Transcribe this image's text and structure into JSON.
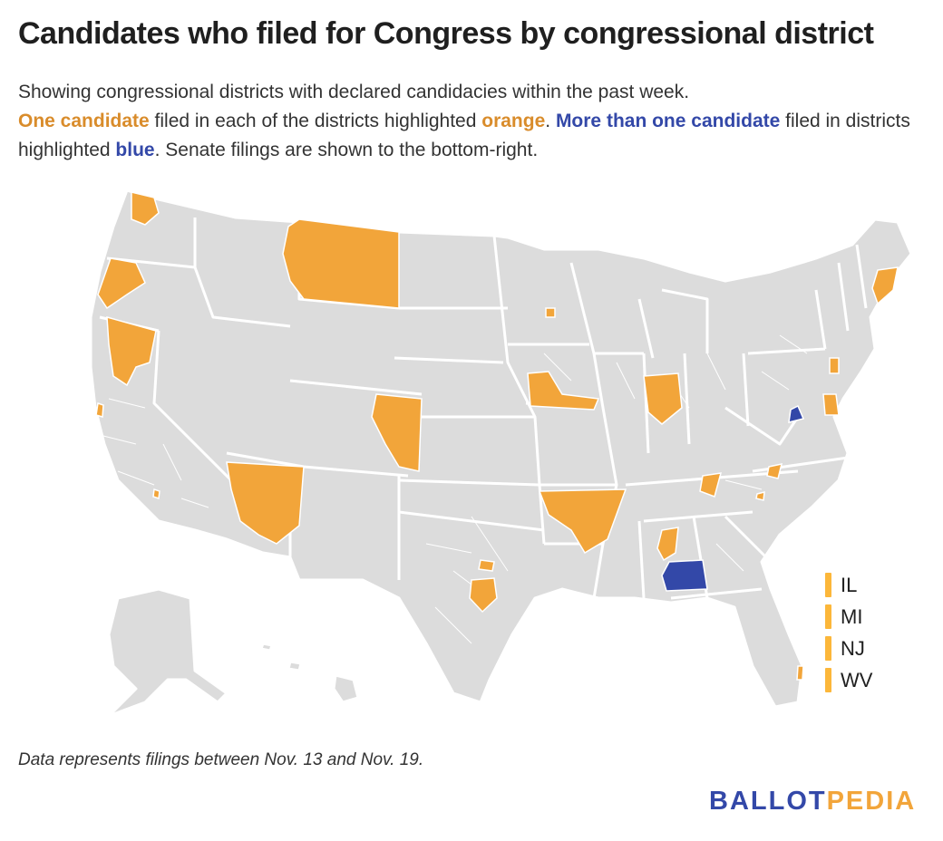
{
  "title": "Candidates who filed for Congress by congressional district",
  "subtitle": {
    "line1": "Showing congressional districts with declared candidacies within the past week.",
    "one_candidate": "One candidate",
    "text_a": " filed in each of the districts highlighted ",
    "orange": "orange",
    "text_b": ". ",
    "more_than_one": "More than one candidate",
    "text_c": " filed in districts highlighted ",
    "blue": "blue",
    "text_d": ". Senate filings are shown to the bottom-right."
  },
  "colors": {
    "one_candidate": "#f2a53a",
    "more_than_one": "#3348a8",
    "base": "#dcdcdc",
    "state_border": "#ffffff",
    "senate_bar": "#fcb73a"
  },
  "map": {
    "one_candidate_districts": [
      "WA",
      "OR",
      "CA-north",
      "CA-bay",
      "CA-south",
      "MT",
      "CO",
      "AZ",
      "NM-south",
      "TX-north",
      "TX-central",
      "IA",
      "MN",
      "AR",
      "MO-south",
      "IL",
      "AL",
      "TN",
      "VA-south",
      "NC",
      "PA",
      "DE",
      "ME",
      "FL"
    ],
    "more_than_one_districts": [
      "AL-south",
      "VA-north"
    ]
  },
  "senate": {
    "items": [
      "IL",
      "MI",
      "NJ",
      "WV"
    ]
  },
  "footnote": "Data represents filings between Nov. 13 and Nov. 19.",
  "logo": {
    "part1": "BALLOT",
    "part2": "PEDIA"
  }
}
